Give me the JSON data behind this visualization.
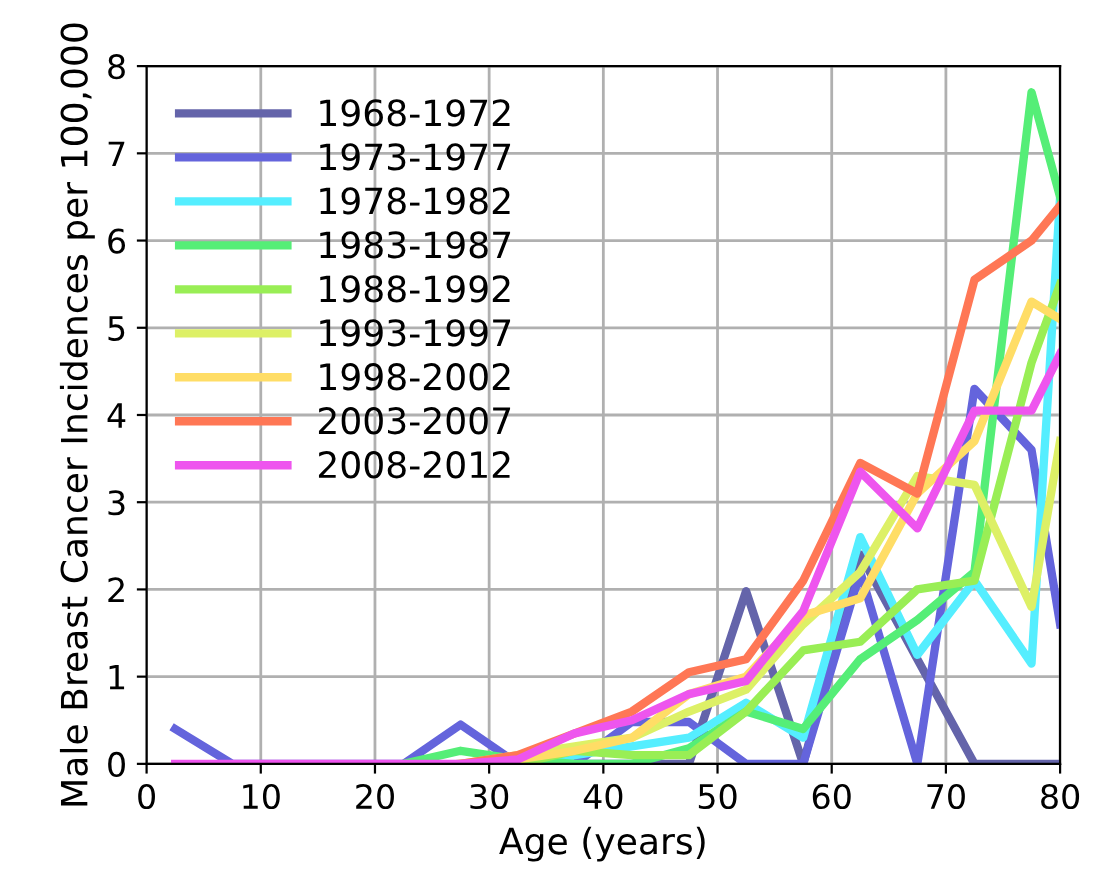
{
  "chart_data": {
    "type": "line",
    "xlabel": "Age (years)",
    "ylabel": "Male Breast Cancer Incidences per 100,000",
    "x": [
      2.5,
      7.5,
      12.5,
      17.5,
      22.5,
      27.5,
      32.5,
      37.5,
      42.5,
      47.5,
      52.5,
      57.5,
      62.5,
      67.5,
      72.5,
      77.5,
      80
    ],
    "series": [
      {
        "name": "1968-1972",
        "color": "#6464aa",
        "values": [
          null,
          null,
          null,
          null,
          null,
          null,
          0,
          0,
          0,
          0,
          1.98,
          0,
          2.4,
          1.2,
          0,
          0,
          0
        ]
      },
      {
        "name": "1973-1977",
        "color": "#6464dc",
        "values": [
          0.4,
          0,
          0,
          0,
          0,
          0.45,
          0,
          0,
          0.48,
          0.48,
          0,
          0,
          2.2,
          0,
          4.3,
          3.6,
          1.6
        ]
      },
      {
        "name": "1978-1982",
        "color": "#55eeff",
        "values": [
          null,
          null,
          null,
          null,
          null,
          null,
          0,
          0.1,
          0.2,
          0.3,
          0.7,
          0.3,
          2.6,
          1.25,
          2.1,
          1.15,
          6.5
        ]
      },
      {
        "name": "1983-1987",
        "color": "#55ee77",
        "values": [
          null,
          null,
          null,
          null,
          0,
          0.15,
          0.05,
          0,
          0,
          0.18,
          0.6,
          0.4,
          1.2,
          1.65,
          2.2,
          7.7,
          6.5
        ]
      },
      {
        "name": "1988-1992",
        "color": "#99ee55",
        "values": [
          null,
          null,
          null,
          null,
          null,
          0,
          0,
          0.15,
          0.1,
          0.1,
          0.6,
          1.3,
          1.4,
          2.0,
          2.1,
          4.6,
          5.5
        ]
      },
      {
        "name": "1993-1997",
        "color": "#ddf066",
        "values": [
          null,
          null,
          null,
          null,
          null,
          0,
          0.1,
          0.2,
          0.3,
          0.6,
          0.85,
          1.6,
          2.2,
          3.3,
          3.2,
          1.8,
          3.7
        ]
      },
      {
        "name": "1998-2002",
        "color": "#ffdd66",
        "values": [
          null,
          null,
          null,
          null,
          null,
          0,
          0.05,
          0.15,
          0.3,
          0.8,
          1.0,
          1.7,
          1.9,
          3.1,
          3.7,
          5.3,
          5.1
        ]
      },
      {
        "name": "2003-2007",
        "color": "#ff7755",
        "values": [
          null,
          null,
          null,
          null,
          null,
          0,
          0.1,
          0.35,
          0.6,
          1.05,
          1.2,
          2.1,
          3.45,
          3.1,
          5.55,
          6.0,
          6.4
        ]
      },
      {
        "name": "2008-2012",
        "color": "#ee55ee",
        "values": [
          0,
          0,
          0,
          0,
          0,
          0,
          0.05,
          0.35,
          0.5,
          0.8,
          0.95,
          1.75,
          3.35,
          2.7,
          4.05,
          4.05,
          4.7
        ]
      }
    ],
    "xlim": [
      0,
      80
    ],
    "xticks": [
      0,
      10,
      20,
      30,
      40,
      50,
      60,
      70,
      80
    ],
    "ylim": [
      0,
      8
    ],
    "yticks": [
      0,
      1,
      2,
      3,
      4,
      5,
      6,
      7,
      8
    ],
    "grid": true,
    "legend": "top left",
    "line_style": "solid",
    "marker": "none"
  }
}
